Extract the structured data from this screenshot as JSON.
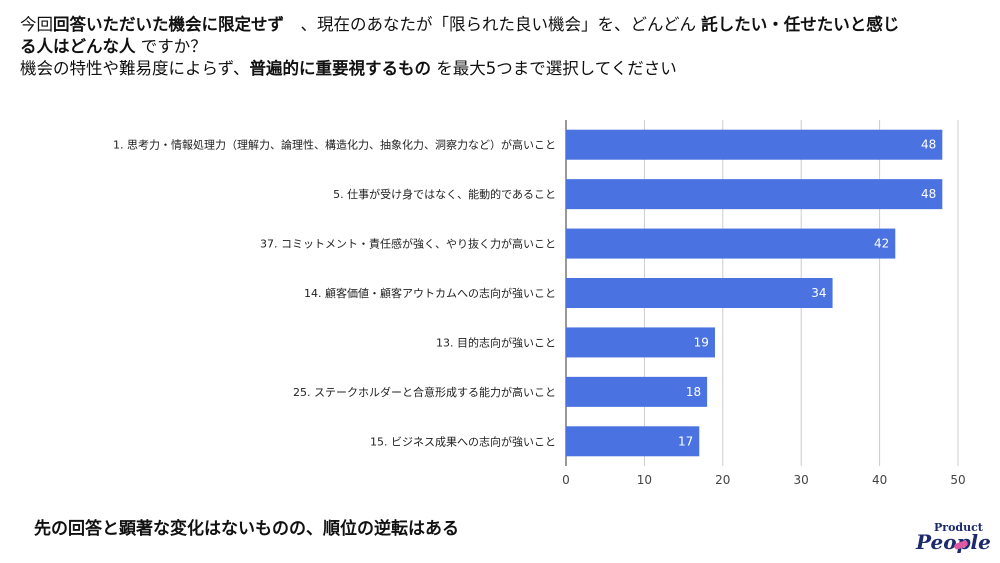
{
  "heading": {
    "line1": [
      {
        "text": "今回",
        "bold": false
      },
      {
        "text": "回答いただいた機会に限定せず",
        "bold": true
      },
      {
        "text": "　、現在のあなたが「限られた良い機会」を、どんどん ",
        "bold": false
      },
      {
        "text": "託したい・任せたいと感じ",
        "bold": true
      }
    ],
    "line2": [
      {
        "text": "る人はどんな人",
        "bold": true
      },
      {
        "text": " ですか？",
        "bold": false
      }
    ],
    "line3": [
      {
        "text": "機会の特性や難易度によらず、",
        "bold": false
      },
      {
        "text": "普遍的に重要視するもの",
        "bold": true
      },
      {
        "text": " を最大5つまで選択してください",
        "bold": false
      }
    ]
  },
  "chart_data": {
    "type": "bar",
    "orientation": "horizontal",
    "categories": [
      "1. 思考力・情報処理力（理解力、論理性、構造化力、抽象化力、洞察力など）が高いこと",
      "5. 仕事が受け身ではなく、能動的であること",
      "37. コミットメント・責任感が強く、やり抜く力が高いこと",
      "14. 顧客価値・顧客アウトカムへの志向が強いこと",
      "13. 目的志向が強いこと",
      "25. ステークホルダーと合意形成する能力が高いこと",
      "15. ビジネス成果への志向が強いこと"
    ],
    "values": [
      48,
      48,
      42,
      34,
      19,
      18,
      17
    ],
    "xlim": [
      0,
      50
    ],
    "xticks": [
      0,
      10,
      20,
      30,
      40,
      50
    ],
    "grid": true,
    "data_labels": true,
    "bar_color": "#4a72e0",
    "label_color": "#ffffff"
  },
  "footer_note": "先の回答と顕著な変化はないものの、順位の逆転はある",
  "logo": {
    "top": "Product",
    "bottom": "People"
  }
}
